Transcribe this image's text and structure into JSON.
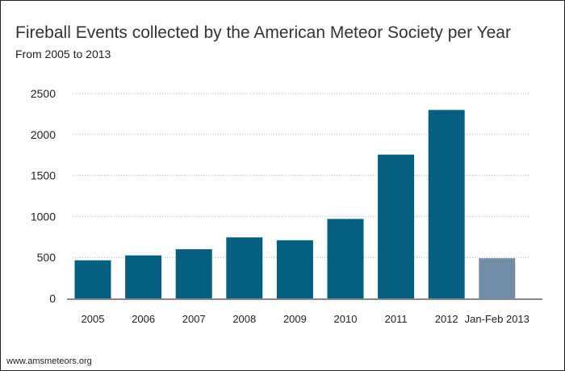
{
  "chart_data": {
    "type": "bar",
    "title": "Fireball Events collected by the American Meteor Society per Year",
    "subtitle": "From 2005 to 2013",
    "xlabel": "",
    "ylabel": "",
    "categories": [
      "2005",
      "2006",
      "2007",
      "2008",
      "2009",
      "2010",
      "2011",
      "2012",
      "Jan-Feb 2013"
    ],
    "values": [
      465,
      525,
      600,
      745,
      710,
      970,
      1755,
      2300,
      490
    ],
    "ylim": [
      0,
      2500
    ],
    "yticks": [
      0,
      500,
      1000,
      1500,
      2000,
      2500
    ],
    "grid": true,
    "legend": "none",
    "colors": {
      "bar": "#05607f",
      "partial_bar": "#718ca5"
    }
  },
  "footer": "www.amsmeteors.org"
}
